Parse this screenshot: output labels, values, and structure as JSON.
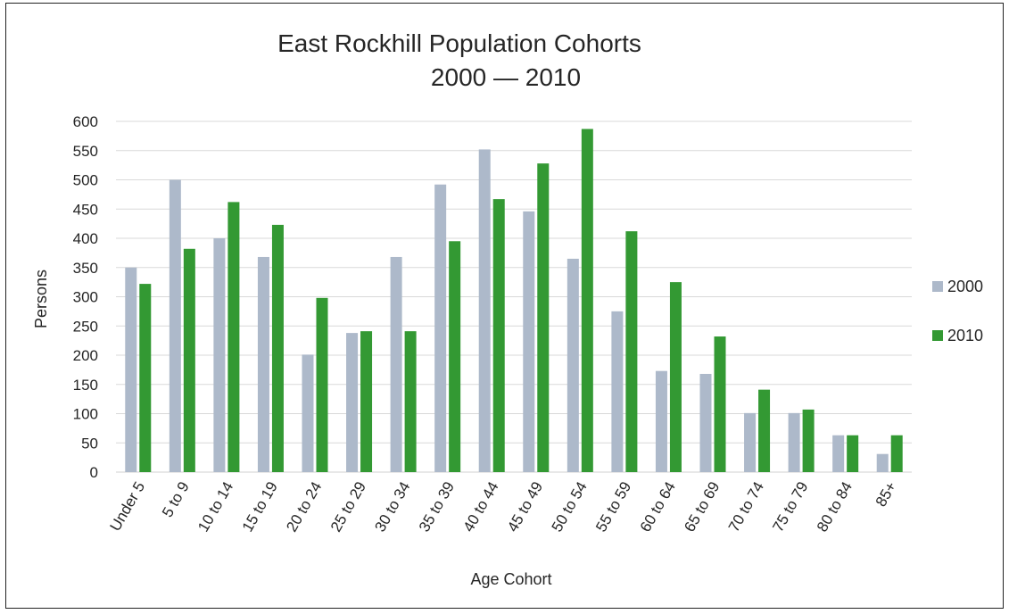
{
  "chart_data": {
    "type": "bar",
    "title": "East Rockhill Population Cohorts",
    "subtitle": "2000 — 2010",
    "xlabel": "Age Cohort",
    "ylabel": "Persons",
    "ylim": [
      0,
      600
    ],
    "yticks": [
      0,
      50,
      100,
      150,
      200,
      250,
      300,
      350,
      400,
      450,
      500,
      550,
      600
    ],
    "grid": true,
    "legend_position": "right",
    "categories": [
      "Under 5",
      "5 to 9",
      "10 to 14",
      "15 to 19",
      "20 to 24",
      "25 to 29",
      "30 to 34",
      "35 to 39",
      "40 to 44",
      "45 to 49",
      "50 to 54",
      "55 to 59",
      "60 to 64",
      "65 to 69",
      "70 to 74",
      "75 to 79",
      "80 to 84",
      "85+"
    ],
    "series": [
      {
        "name": "2000",
        "color": "#adb9ca",
        "values": [
          350,
          500,
          400,
          368,
          201,
          238,
          368,
          492,
          552,
          446,
          365,
          275,
          173,
          168,
          101,
          101,
          63,
          31
        ]
      },
      {
        "name": "2010",
        "color": "#339933",
        "values": [
          322,
          382,
          462,
          423,
          298,
          241,
          241,
          395,
          467,
          528,
          587,
          412,
          325,
          232,
          141,
          107,
          63,
          63
        ]
      }
    ]
  }
}
